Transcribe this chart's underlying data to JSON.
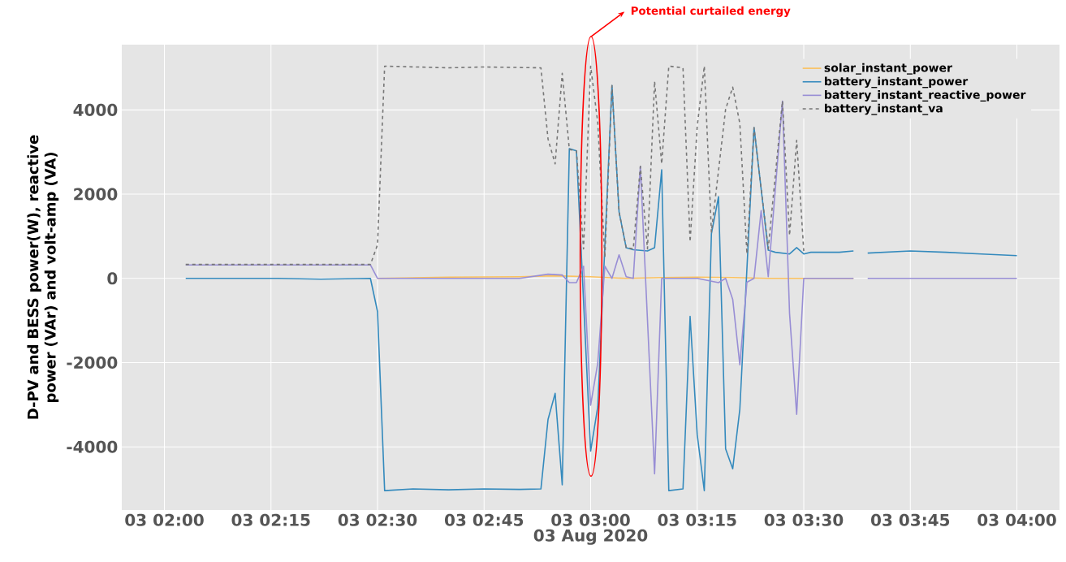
{
  "chart_data": {
    "type": "line",
    "xlabel": "03 Aug 2020",
    "ylabel": "D-PV and BESS power(W), reactive power (VAr) and volt-amp (VA)",
    "annotations": [
      "Potential curtailed energy"
    ],
    "series": [
      {
        "name": "solar_instant_power",
        "color": "#fbc15e",
        "x": [
          "2020-08-03T02:30",
          "2020-08-03T02:40",
          "2020-08-03T02:50",
          "2020-08-03T02:55",
          "2020-08-03T03:00",
          "2020-08-03T03:05",
          "2020-08-03T03:10",
          "2020-08-03T03:15",
          "2020-08-03T03:20",
          "2020-08-03T03:25",
          "2020-08-03T03:30",
          "2020-08-03T03:37"
        ],
        "values": [
          0,
          30,
          40,
          60,
          40,
          0,
          20,
          30,
          20,
          0,
          0,
          0
        ]
      },
      {
        "name": "battery_instant_power",
        "color": "#348abd",
        "x": [
          "2020-08-03T02:03",
          "2020-08-03T02:10",
          "2020-08-03T02:16",
          "2020-08-03T02:22",
          "2020-08-03T02:29",
          "2020-08-03T02:30",
          "2020-08-03T02:31",
          "2020-08-03T02:35",
          "2020-08-03T02:40",
          "2020-08-03T02:45",
          "2020-08-03T02:50",
          "2020-08-03T02:53",
          "2020-08-03T02:54",
          "2020-08-03T02:55",
          "2020-08-03T02:56",
          "2020-08-03T02:57",
          "2020-08-03T02:58",
          "2020-08-03T03:00",
          "2020-08-03T03:01",
          "2020-08-03T03:03",
          "2020-08-03T03:04",
          "2020-08-03T03:05",
          "2020-08-03T03:06",
          "2020-08-03T03:08",
          "2020-08-03T03:09",
          "2020-08-03T03:10",
          "2020-08-03T03:11",
          "2020-08-03T03:13",
          "2020-08-03T03:14",
          "2020-08-03T03:15",
          "2020-08-03T03:16",
          "2020-08-03T03:17",
          "2020-08-03T03:18",
          "2020-08-03T03:19",
          "2020-08-03T03:20",
          "2020-08-03T03:21",
          "2020-08-03T03:23",
          "2020-08-03T03:25",
          "2020-08-03T03:26",
          "2020-08-03T03:28",
          "2020-08-03T03:29",
          "2020-08-03T03:30",
          "2020-08-03T03:31",
          "2020-08-03T03:35",
          "2020-08-03T03:37",
          "2020-08-03T03:38",
          "2020-08-03T03:39",
          "2020-08-03T03:45",
          "2020-08-03T03:50",
          "2020-08-03T03:55",
          "2020-08-03T04:00"
        ],
        "values": [
          0,
          0,
          0,
          -20,
          0,
          -790,
          -5040,
          -5000,
          -5020,
          -5000,
          -5010,
          -5000,
          -3350,
          -2730,
          -4900,
          3080,
          3030,
          -4100,
          -3050,
          4580,
          1580,
          730,
          680,
          650,
          730,
          2580,
          -5040,
          -5000,
          -900,
          -3710,
          -5040,
          1060,
          1940,
          -4050,
          -4520,
          -3110,
          3580,
          670,
          620,
          580,
          730,
          580,
          620,
          620,
          650,
          null,
          600,
          650,
          620,
          580,
          540
        ]
      },
      {
        "name": "battery_instant_reactive_power",
        "color": "#988ed5",
        "x": [
          "2020-08-03T02:03",
          "2020-08-03T02:10",
          "2020-08-03T02:20",
          "2020-08-03T02:29",
          "2020-08-03T02:30",
          "2020-08-03T02:40",
          "2020-08-03T02:50",
          "2020-08-03T02:54",
          "2020-08-03T02:56",
          "2020-08-03T02:57",
          "2020-08-03T02:58",
          "2020-08-03T02:59",
          "2020-08-03T03:00",
          "2020-08-03T03:01",
          "2020-08-03T03:02",
          "2020-08-03T03:03",
          "2020-08-03T03:04",
          "2020-08-03T03:05",
          "2020-08-03T03:06",
          "2020-08-03T03:07",
          "2020-08-03T03:09",
          "2020-08-03T03:10",
          "2020-08-03T03:15",
          "2020-08-03T03:18",
          "2020-08-03T03:19",
          "2020-08-03T03:20",
          "2020-08-03T03:21",
          "2020-08-03T03:22",
          "2020-08-03T03:23",
          "2020-08-03T03:24",
          "2020-08-03T03:25",
          "2020-08-03T03:27",
          "2020-08-03T03:28",
          "2020-08-03T03:29",
          "2020-08-03T03:30",
          "2020-08-03T03:37",
          "2020-08-03T03:38",
          "2020-08-03T03:39",
          "2020-08-03T04:00"
        ],
        "values": [
          320,
          320,
          320,
          320,
          0,
          0,
          0,
          100,
          80,
          -100,
          -100,
          290,
          -3010,
          -2010,
          290,
          0,
          560,
          40,
          0,
          2660,
          -4640,
          0,
          0,
          -100,
          0,
          -500,
          -2050,
          -90,
          0,
          1610,
          40,
          4210,
          -830,
          -3230,
          0,
          0,
          null,
          0,
          0
        ]
      },
      {
        "name": "battery_instant_va",
        "color": "#777777",
        "line_style": "dashed",
        "x": [
          "2020-08-03T02:03",
          "2020-08-03T02:29",
          "2020-08-03T02:30",
          "2020-08-03T02:31",
          "2020-08-03T02:40",
          "2020-08-03T02:45",
          "2020-08-03T02:53",
          "2020-08-03T02:54",
          "2020-08-03T02:55",
          "2020-08-03T02:56",
          "2020-08-03T02:57",
          "2020-08-03T02:58",
          "2020-08-03T02:59",
          "2020-08-03T03:00",
          "2020-08-03T03:01",
          "2020-08-03T03:02",
          "2020-08-03T03:03",
          "2020-08-03T03:04",
          "2020-08-03T03:05",
          "2020-08-03T03:06",
          "2020-08-03T03:07",
          "2020-08-03T03:08",
          "2020-08-03T03:09",
          "2020-08-03T03:10",
          "2020-08-03T03:11",
          "2020-08-03T03:13",
          "2020-08-03T03:14",
          "2020-08-03T03:15",
          "2020-08-03T03:16",
          "2020-08-03T03:17",
          "2020-08-03T03:19",
          "2020-08-03T03:20",
          "2020-08-03T03:21",
          "2020-08-03T03:22",
          "2020-08-03T03:23",
          "2020-08-03T03:25",
          "2020-08-03T03:27",
          "2020-08-03T03:28",
          "2020-08-03T03:29",
          "2020-08-03T03:30"
        ],
        "values": [
          330,
          330,
          800,
          5040,
          5000,
          5020,
          5000,
          3310,
          2720,
          4870,
          3060,
          3030,
          700,
          5040,
          3700,
          500,
          4580,
          1580,
          730,
          700,
          2660,
          700,
          4680,
          2720,
          5040,
          5000,
          870,
          3610,
          5040,
          1100,
          4020,
          4540,
          3680,
          580,
          3580,
          700,
          4210,
          1020,
          3280,
          650
        ]
      }
    ],
    "xlim": [
      "2020-08-03T01:54",
      "2020-08-03T04:06"
    ],
    "xticks": [
      {
        "value": "2020-08-03T02:00",
        "label": "03 02:00"
      },
      {
        "value": "2020-08-03T02:15",
        "label": "03 02:15"
      },
      {
        "value": "2020-08-03T02:30",
        "label": "03 02:30"
      },
      {
        "value": "2020-08-03T02:45",
        "label": "03 02:45"
      },
      {
        "value": "2020-08-03T03:00",
        "label": "03 03:00"
      },
      {
        "value": "2020-08-03T03:15",
        "label": "03 03:15"
      },
      {
        "value": "2020-08-03T03:30",
        "label": "03 03:30"
      },
      {
        "value": "2020-08-03T03:45",
        "label": "03 03:45"
      },
      {
        "value": "2020-08-03T04:00",
        "label": "03 04:00"
      }
    ],
    "ylim": [
      -5500,
      5550
    ],
    "yticks": [
      -4000,
      -2000,
      0,
      2000,
      4000
    ],
    "grid": true,
    "legend": "top right"
  }
}
